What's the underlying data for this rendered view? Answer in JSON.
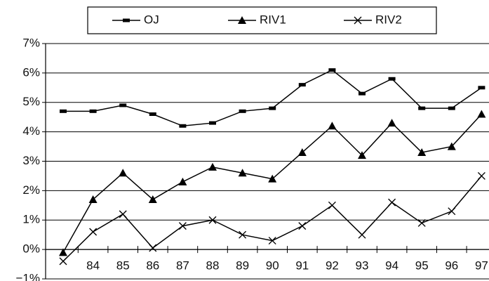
{
  "chart_data": {
    "type": "line",
    "categories": [
      null,
      "84",
      "85",
      "86",
      "87",
      "88",
      "89",
      "90",
      "91",
      "92",
      "93",
      "94",
      "95",
      "96",
      "97"
    ],
    "series": [
      {
        "name": "OJ",
        "color": "#000000",
        "marker": "dash",
        "values": [
          4.7,
          4.7,
          4.9,
          4.6,
          4.2,
          4.3,
          4.7,
          4.8,
          5.6,
          6.1,
          5.3,
          5.8,
          4.8,
          4.8,
          5.5
        ]
      },
      {
        "name": "RIV1",
        "color": "#000000",
        "marker": "triangle",
        "values": [
          -0.1,
          1.7,
          2.6,
          1.7,
          2.3,
          2.8,
          2.6,
          2.4,
          3.3,
          4.2,
          3.2,
          4.3,
          3.3,
          3.5,
          4.6
        ]
      },
      {
        "name": "RIV2",
        "color": "#000000",
        "marker": "x",
        "values": [
          -0.4,
          0.6,
          1.2,
          0.05,
          0.8,
          1.0,
          0.5,
          0.3,
          0.8,
          1.5,
          0.5,
          1.6,
          0.9,
          1.3,
          2.5
        ]
      }
    ],
    "ylim": [
      -1,
      7
    ],
    "yticks": [
      {
        "value": -1,
        "label": "−1%"
      },
      {
        "value": 0,
        "label": "0%"
      },
      {
        "value": 1,
        "label": "1%"
      },
      {
        "value": 2,
        "label": "2%"
      },
      {
        "value": 3,
        "label": "3%"
      },
      {
        "value": 4,
        "label": "4%"
      },
      {
        "value": 5,
        "label": "5%"
      },
      {
        "value": 6,
        "label": "6%"
      },
      {
        "value": 7,
        "label": "7%"
      }
    ],
    "grid": true,
    "legend": "top"
  }
}
